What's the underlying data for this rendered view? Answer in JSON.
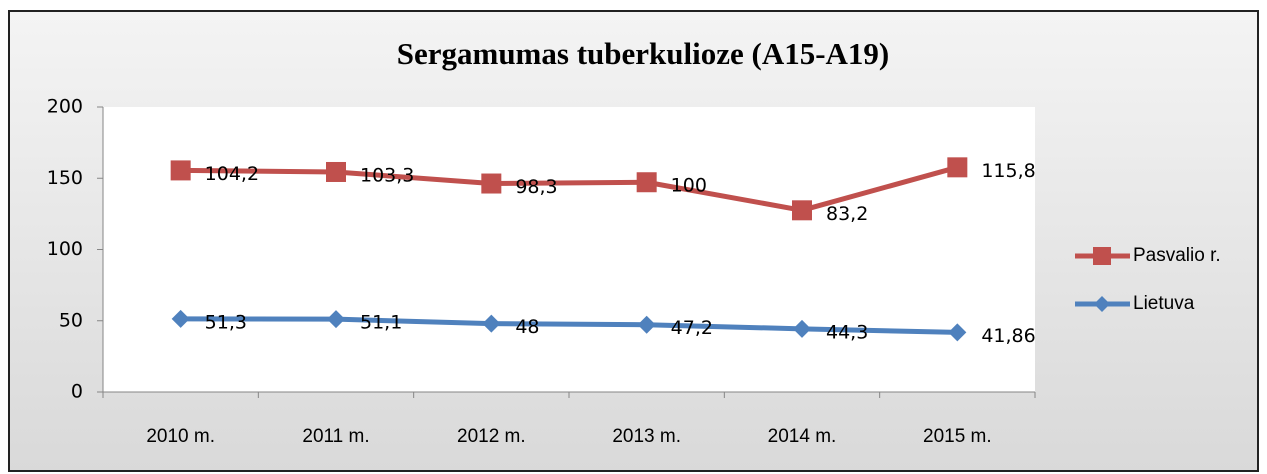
{
  "chart_data": {
    "type": "line",
    "stacked": true,
    "title": "Sergamumas tuberkulioze (A15-A19)",
    "categories": [
      "2010 m.",
      "2011 m.",
      "2012 m.",
      "2013 m.",
      "2014 m.",
      "2015 m."
    ],
    "series": [
      {
        "name": "Lietuva",
        "color": "#4f81bd",
        "marker": "diamond",
        "values": [
          51.3,
          51.1,
          48,
          47.2,
          44.3,
          41.86
        ],
        "value_labels": [
          "51,3",
          "51,1",
          "48",
          "47,2",
          "44,3",
          "41,86"
        ]
      },
      {
        "name": "Pasvalio r.",
        "color": "#c0504d",
        "marker": "square",
        "values": [
          104.2,
          103.3,
          98.3,
          100,
          83.2,
          115.8
        ],
        "value_labels": [
          "104,2",
          "103,3",
          "98,3",
          "100",
          "83,2",
          "115,8"
        ]
      }
    ],
    "ylim": [
      0,
      200
    ],
    "yticks": [
      0,
      50,
      100,
      150,
      200
    ],
    "grid": false,
    "legend": "right"
  }
}
